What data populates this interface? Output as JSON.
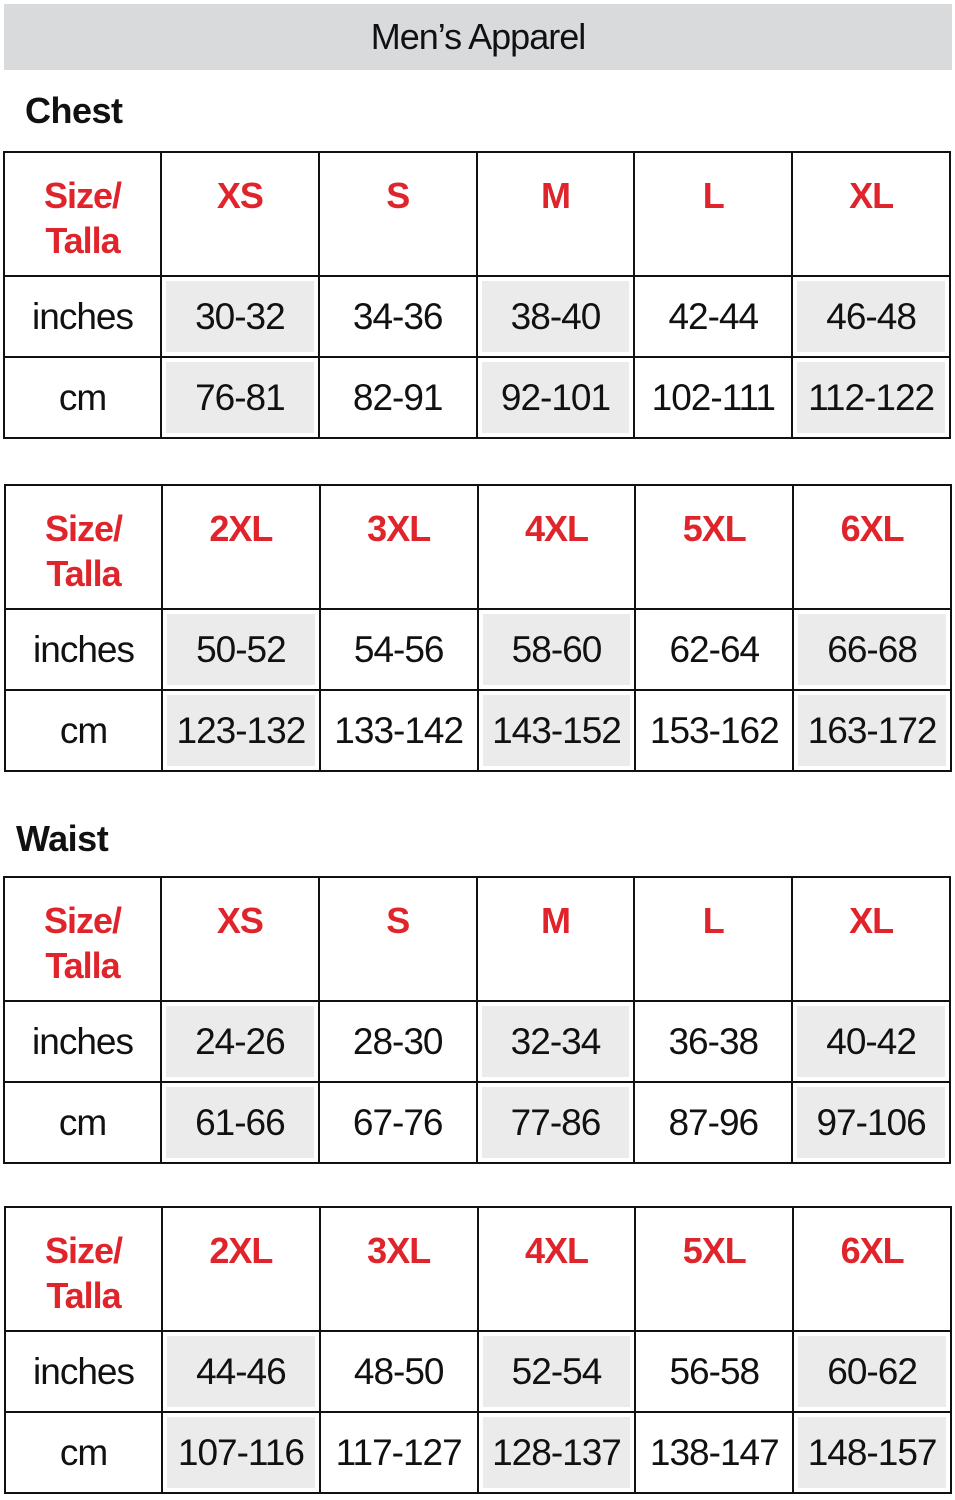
{
  "title": "Men’s Apparel",
  "sections": [
    {
      "name": "Chest",
      "tables": [
        {
          "header_label": [
            "Size/",
            "Talla"
          ],
          "sizes": [
            "XS",
            "S",
            "M",
            "L",
            "XL"
          ],
          "rows": [
            {
              "unit": "inches",
              "values": [
                "30-32",
                "34-36",
                "38-40",
                "42-44",
                "46-48"
              ]
            },
            {
              "unit": "cm",
              "values": [
                "76-81",
                "82-91",
                "92-101",
                "102-111",
                "112-122"
              ]
            }
          ]
        },
        {
          "header_label": [
            "Size/",
            "Talla"
          ],
          "sizes": [
            "2XL",
            "3XL",
            "4XL",
            "5XL",
            "6XL"
          ],
          "rows": [
            {
              "unit": "inches",
              "values": [
                "50-52",
                "54-56",
                "58-60",
                "62-64",
                "66-68"
              ]
            },
            {
              "unit": "cm",
              "values": [
                "123-132",
                "133-142",
                "143-152",
                "153-162",
                "163-172"
              ]
            }
          ]
        }
      ]
    },
    {
      "name": "Waist",
      "tables": [
        {
          "header_label": [
            "Size/",
            "Talla"
          ],
          "sizes": [
            "XS",
            "S",
            "M",
            "L",
            "XL"
          ],
          "rows": [
            {
              "unit": "inches",
              "values": [
                "24-26",
                "28-30",
                "32-34",
                "36-38",
                "40-42"
              ]
            },
            {
              "unit": "cm",
              "values": [
                "61-66",
                "67-76",
                "77-86",
                "87-96",
                "97-106"
              ]
            }
          ]
        },
        {
          "header_label": [
            "Size/",
            "Talla"
          ],
          "sizes": [
            "2XL",
            "3XL",
            "4XL",
            "5XL",
            "6XL"
          ],
          "rows": [
            {
              "unit": "inches",
              "values": [
                "44-46",
                "48-50",
                "52-54",
                "56-58",
                "60-62"
              ]
            },
            {
              "unit": "cm",
              "values": [
                "107-116",
                "117-127",
                "128-137",
                "138-147",
                "148-157"
              ]
            }
          ]
        }
      ]
    }
  ],
  "colors": {
    "size_header": "#e0242b",
    "banner": "#d9dadc",
    "shaded_cell": "#ebebeb"
  }
}
